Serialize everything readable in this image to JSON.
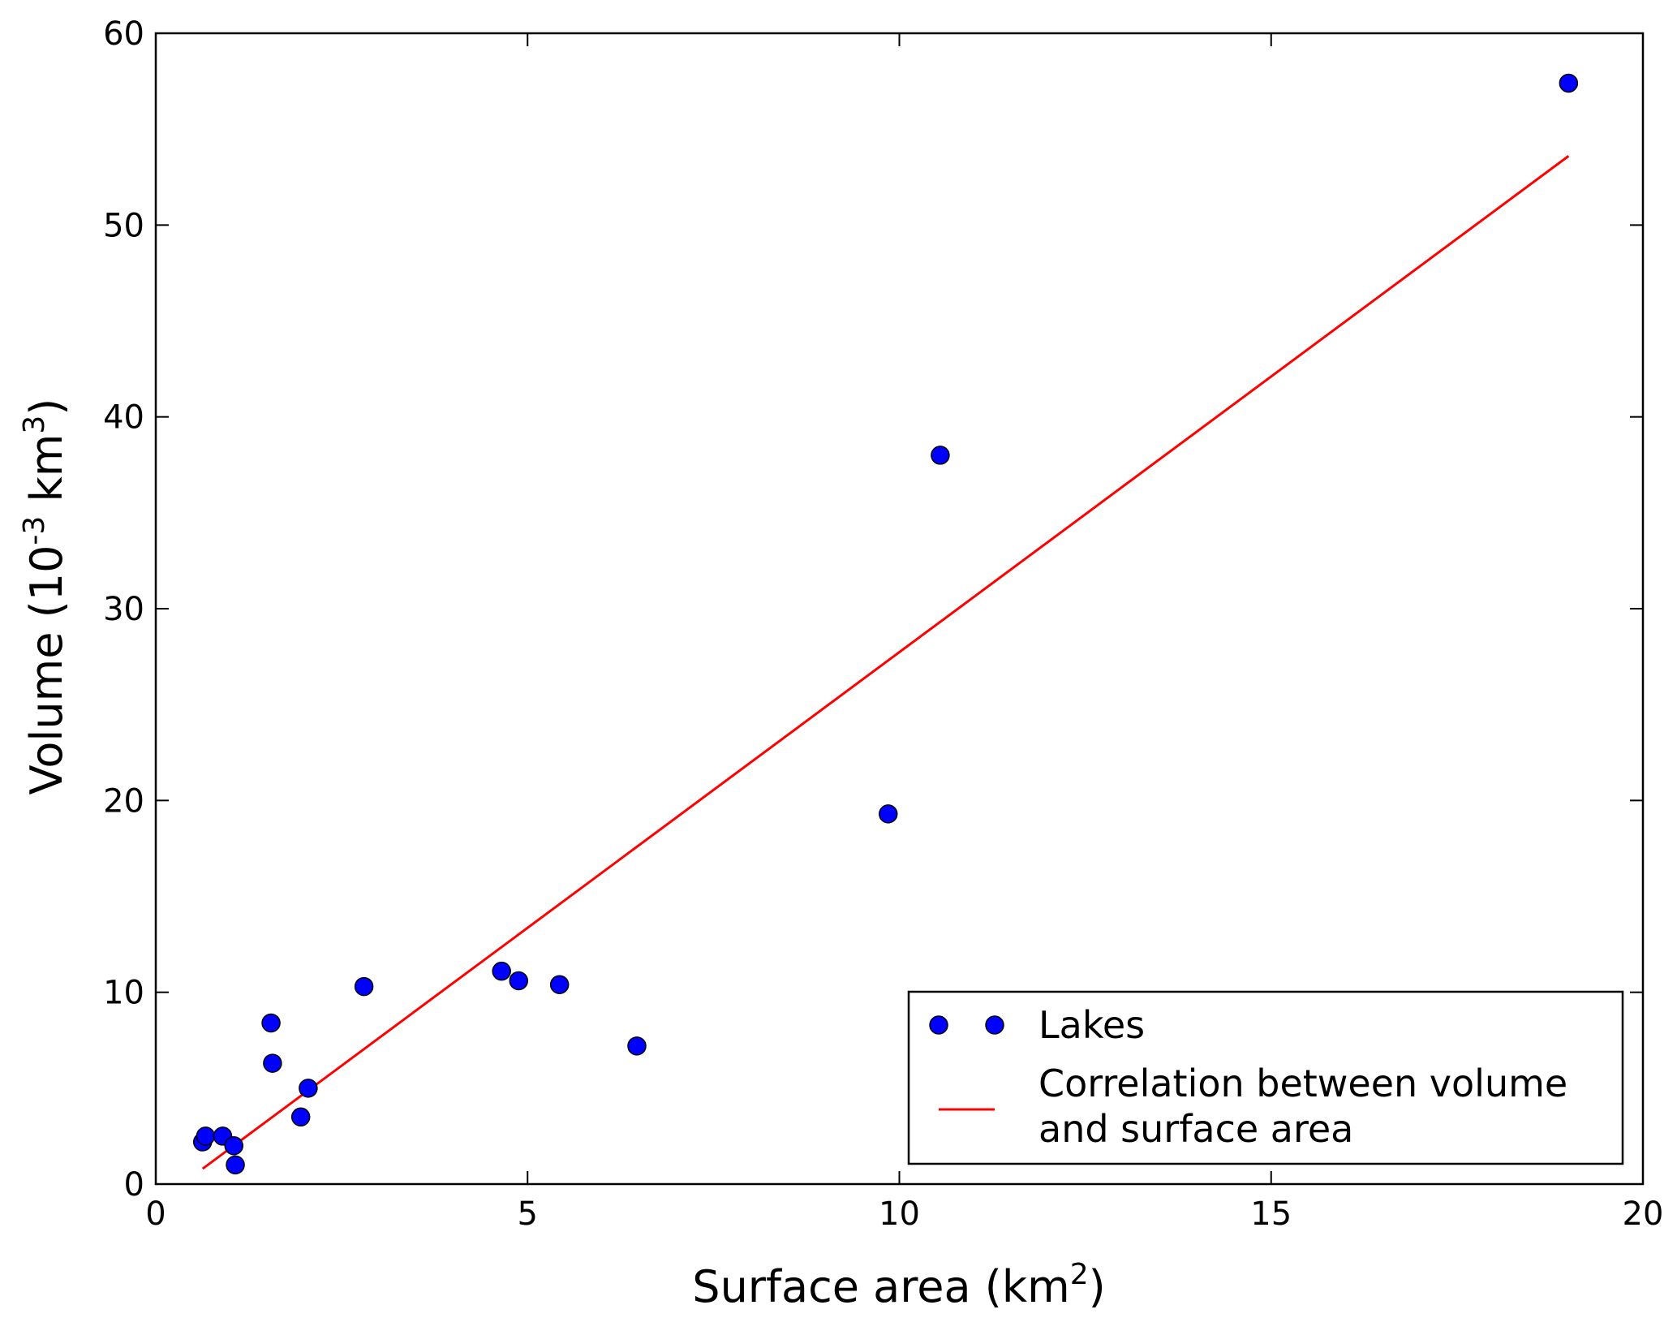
{
  "chart_data": {
    "type": "scatter",
    "xlabel": {
      "prefix": "Surface area (km",
      "sup": "2",
      "suffix": ")"
    },
    "ylabel": {
      "prefix": "Volume (10",
      "sup1": "-3",
      "mid": " km",
      "sup2": "3",
      "suffix": ")"
    },
    "xlim": [
      0,
      20
    ],
    "ylim": [
      0,
      60
    ],
    "xticks": [
      0,
      5,
      10,
      15,
      20
    ],
    "yticks": [
      0,
      10,
      20,
      30,
      40,
      50,
      60
    ],
    "grid": false,
    "legend_position": "bottom-right",
    "series": [
      {
        "name": "Lakes",
        "kind": "markers",
        "color": "#0000ff",
        "points": [
          {
            "x": 0.63,
            "y": 2.2
          },
          {
            "x": 0.67,
            "y": 2.5
          },
          {
            "x": 0.9,
            "y": 2.5
          },
          {
            "x": 1.05,
            "y": 2.0
          },
          {
            "x": 1.07,
            "y": 1.0
          },
          {
            "x": 1.55,
            "y": 8.4
          },
          {
            "x": 1.57,
            "y": 6.3
          },
          {
            "x": 1.95,
            "y": 3.5
          },
          {
            "x": 2.05,
            "y": 5.0
          },
          {
            "x": 2.8,
            "y": 10.3
          },
          {
            "x": 4.65,
            "y": 11.1
          },
          {
            "x": 4.88,
            "y": 10.6
          },
          {
            "x": 5.43,
            "y": 10.4
          },
          {
            "x": 6.47,
            "y": 7.2
          },
          {
            "x": 9.85,
            "y": 19.3
          },
          {
            "x": 10.55,
            "y": 38.0
          },
          {
            "x": 19.0,
            "y": 57.4
          }
        ]
      },
      {
        "name_lines": [
          "Correlation between volume",
          "and surface area"
        ],
        "kind": "line",
        "color": "#ff0000",
        "points": [
          {
            "x": 0.63,
            "y": 0.8
          },
          {
            "x": 19.0,
            "y": 53.6
          }
        ]
      }
    ]
  }
}
